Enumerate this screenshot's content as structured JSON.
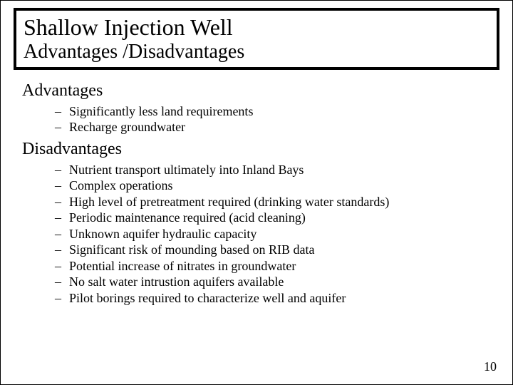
{
  "title": {
    "line1": "Shallow Injection Well",
    "line2": "Advantages /Disadvantages"
  },
  "sections": [
    {
      "heading": "Advantages",
      "items": [
        "Significantly less land requirements",
        "Recharge groundwater"
      ]
    },
    {
      "heading": "Disadvantages",
      "items": [
        "Nutrient transport ultimately into Inland Bays",
        "Complex operations",
        "High level of pretreatment required (drinking water standards)",
        "Periodic maintenance required (acid cleaning)",
        "Unknown aquifer hydraulic capacity",
        "Significant risk of mounding based on RIB data",
        "Potential increase of nitrates in groundwater",
        "No salt water intrustion aquifers available",
        "Pilot borings required to characterize well and aquifer"
      ]
    }
  ],
  "page_number": "10",
  "colors": {
    "background": "#ffffff",
    "text": "#000000",
    "border": "#000000"
  },
  "fonts": {
    "family": "Times New Roman",
    "title_main_size": 32,
    "title_sub_size": 28,
    "heading_size": 24,
    "body_size": 18
  }
}
